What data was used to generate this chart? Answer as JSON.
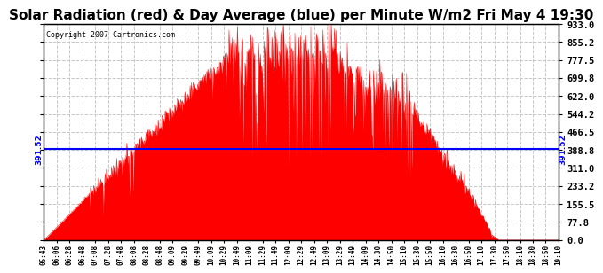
{
  "title": "Solar Radiation (red) & Day Average (blue) per Minute W/m2 Fri May 4 19:30",
  "copyright_text": "Copyright 2007 Cartronics.com",
  "day_average": 391.52,
  "y_max": 933.0,
  "y_min": 0.0,
  "y_ticks": [
    0.0,
    77.8,
    155.5,
    233.2,
    311.0,
    388.8,
    466.5,
    544.2,
    622.0,
    699.8,
    777.5,
    855.2,
    933.0
  ],
  "background_color": "#ffffff",
  "fill_color": "#ff0000",
  "avg_line_color": "#0000ff",
  "grid_color": "#c8c8c8",
  "title_fontsize": 11,
  "avg_label": "391.52",
  "x_labels": [
    "05:43",
    "06:06",
    "06:28",
    "06:48",
    "07:08",
    "07:28",
    "07:48",
    "08:08",
    "08:28",
    "08:48",
    "09:09",
    "09:29",
    "09:49",
    "10:09",
    "10:29",
    "10:49",
    "11:09",
    "11:29",
    "11:49",
    "12:09",
    "12:29",
    "12:49",
    "13:09",
    "13:29",
    "13:49",
    "14:09",
    "14:30",
    "14:50",
    "15:10",
    "15:30",
    "15:50",
    "16:10",
    "16:30",
    "16:50",
    "17:10",
    "17:30",
    "17:50",
    "18:10",
    "18:30",
    "18:50",
    "19:10"
  ]
}
